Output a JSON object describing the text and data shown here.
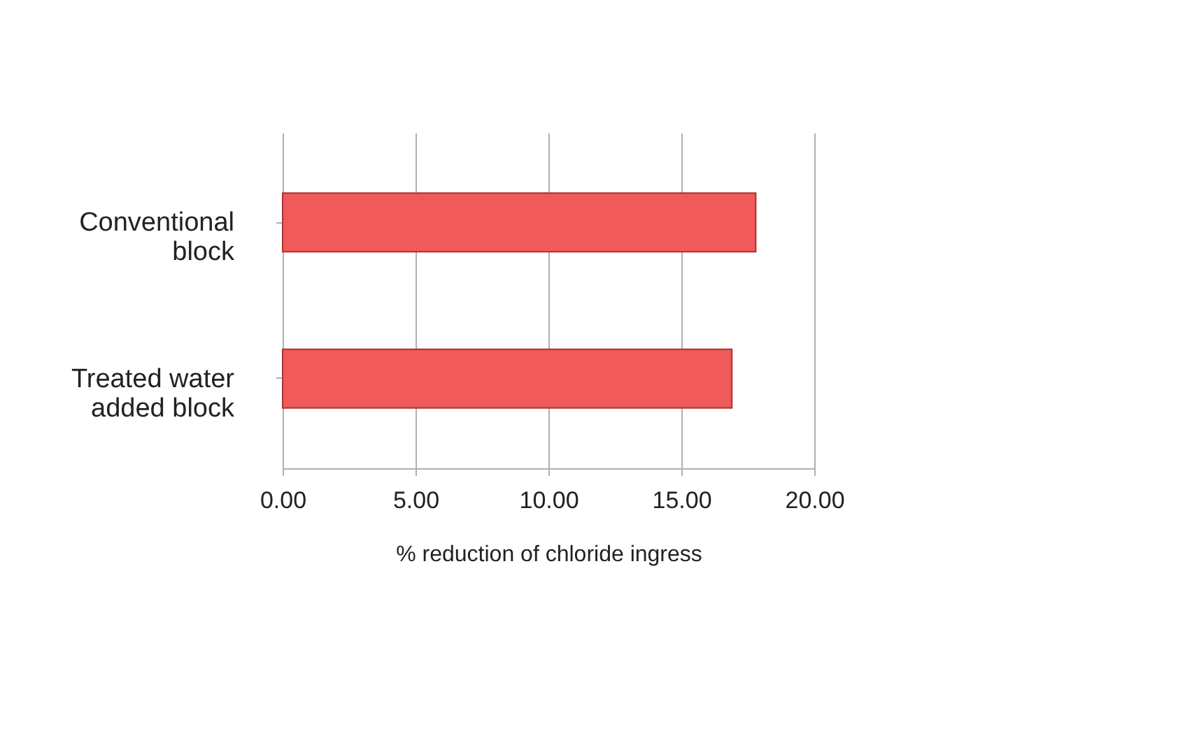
{
  "chart_data": {
    "type": "bar",
    "orientation": "horizontal",
    "xlabel": "% reduction of chloride  ingress",
    "categories": [
      "Conventional block",
      "Treated water added block"
    ],
    "values": [
      17.8,
      16.9
    ],
    "color": "#f05a5a",
    "xlim": [
      0,
      20
    ],
    "xticks": [
      {
        "value": 0,
        "label": "0.00"
      },
      {
        "value": 5,
        "label": "5.00"
      },
      {
        "value": 10,
        "label": "10.00"
      },
      {
        "value": 15,
        "label": "15.00"
      },
      {
        "value": 20,
        "label": "20.00"
      }
    ],
    "grid": "x"
  }
}
